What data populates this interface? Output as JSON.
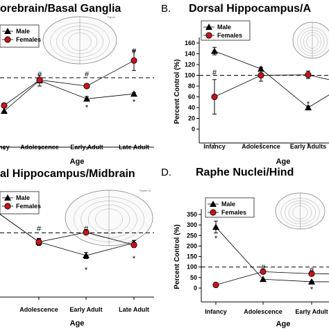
{
  "chart_data": [
    {
      "type": "line",
      "panel_letter": "",
      "title": "orebrain/Basal Ganglia",
      "xlabel": "Age",
      "ylabel": "",
      "categories": [
        "ncy",
        "Adolescence",
        "Early Adult",
        "Late Adult"
      ],
      "ylim": [
        0,
        160
      ],
      "reference_line": 100,
      "brain_label": "Figure",
      "legend": [
        "Male",
        "Females"
      ],
      "series": [
        {
          "name": "Male",
          "values": [
            40,
            95,
            62,
            71
          ],
          "err": [
            0,
            10,
            4,
            2
          ],
          "color": "#000000",
          "marker": "triangle"
        },
        {
          "name": "Females",
          "values": [
            50,
            96,
            85,
            131
          ],
          "err": [
            0,
            3,
            3,
            18
          ],
          "color": "#c8141a",
          "marker": "circle"
        }
      ],
      "annotations": [
        {
          "text": "#",
          "category": 1,
          "y": 107
        },
        {
          "text": "#",
          "category": 2,
          "y": 107
        },
        {
          "text": "#",
          "category": 3,
          "y": 149
        },
        {
          "text": "*",
          "category": 2,
          "y": 47
        },
        {
          "text": "*",
          "category": 3,
          "y": 57
        }
      ]
    },
    {
      "type": "line",
      "panel_letter": "B.",
      "title": "Dorsal Hippocampus/A",
      "xlabel": "Age",
      "ylabel": "Percent Control (%)",
      "categories": [
        "Infancy",
        "Adolescence",
        "Early Adults",
        ""
      ],
      "yticks": [
        0,
        20,
        40,
        60,
        80,
        100,
        120,
        140,
        160
      ],
      "ylim": [
        0,
        160
      ],
      "reference_line": 100,
      "legend": [
        "Male",
        "Females"
      ],
      "series": [
        {
          "name": "Male",
          "values": [
            145,
            112,
            40,
            84
          ],
          "err": [
            7,
            3,
            3,
            0
          ],
          "color": "#000000",
          "marker": "triangle"
        },
        {
          "name": "Females",
          "values": [
            60,
            100,
            101,
            84
          ],
          "err": [
            32,
            11,
            7,
            0
          ],
          "color": "#c8141a",
          "marker": "circle"
        }
      ],
      "annotations": [
        {
          "text": "#",
          "category": 0,
          "y": 106
        },
        {
          "text": "*",
          "category": 2,
          "y": 47
        }
      ]
    },
    {
      "type": "line",
      "panel_letter": "",
      "title": "al Hippocampus/Midbrain",
      "xlabel": "Age",
      "ylabel": "",
      "categories": [
        "",
        "Adolescence",
        "Early Adult",
        "Late Adult"
      ],
      "ylim": [
        0,
        160
      ],
      "reference_line": 100,
      "brain_label": "Figure 41",
      "legend": [
        "Male",
        "Females"
      ],
      "series": [
        {
          "name": "Male",
          "values": [
            145,
            82,
            55,
            80
          ],
          "err": [
            0,
            7,
            6,
            5
          ],
          "color": "#000000",
          "marker": "triangle"
        },
        {
          "name": "Females",
          "values": [
            145,
            82,
            101,
            76
          ],
          "err": [
            0,
            6,
            2,
            5
          ],
          "color": "#c8141a",
          "marker": "circle"
        }
      ],
      "annotations": [
        {
          "text": "#",
          "category": 1,
          "y": 109
        },
        {
          "text": "#",
          "category": 2,
          "y": 109
        },
        {
          "text": "*",
          "category": 2,
          "y": 27
        },
        {
          "text": "*",
          "category": 3,
          "y": 50
        }
      ]
    },
    {
      "type": "line",
      "panel_letter": "D.",
      "title": "Raphe Nuclei/Hind",
      "xlabel": "Age",
      "ylabel": "Percent Control (%)",
      "categories": [
        "Infancy",
        "Adolescence",
        "Early Adult",
        ""
      ],
      "yticks": [
        0,
        50,
        100,
        150,
        200,
        250,
        300,
        350
      ],
      "ylim": [
        0,
        350
      ],
      "reference_line": 100,
      "legend": [
        "Male",
        "Females"
      ],
      "series": [
        {
          "name": "Male",
          "values": [
            290,
            42,
            30,
            30
          ],
          "err": [
            28,
            0,
            3,
            0
          ],
          "color": "#000000",
          "marker": "triangle"
        },
        {
          "name": "Females",
          "values": [
            15,
            78,
            68,
            66
          ],
          "err": [
            3,
            5,
            4,
            0
          ],
          "color": "#c8141a",
          "marker": "circle"
        }
      ],
      "annotations": [
        {
          "text": "*",
          "category": 0,
          "y": 238
        },
        {
          "text": "#",
          "category": 1,
          "y": 100
        },
        {
          "text": "#",
          "category": 2,
          "y": 88
        },
        {
          "text": "*",
          "category": 2,
          "y": -5
        }
      ]
    }
  ]
}
